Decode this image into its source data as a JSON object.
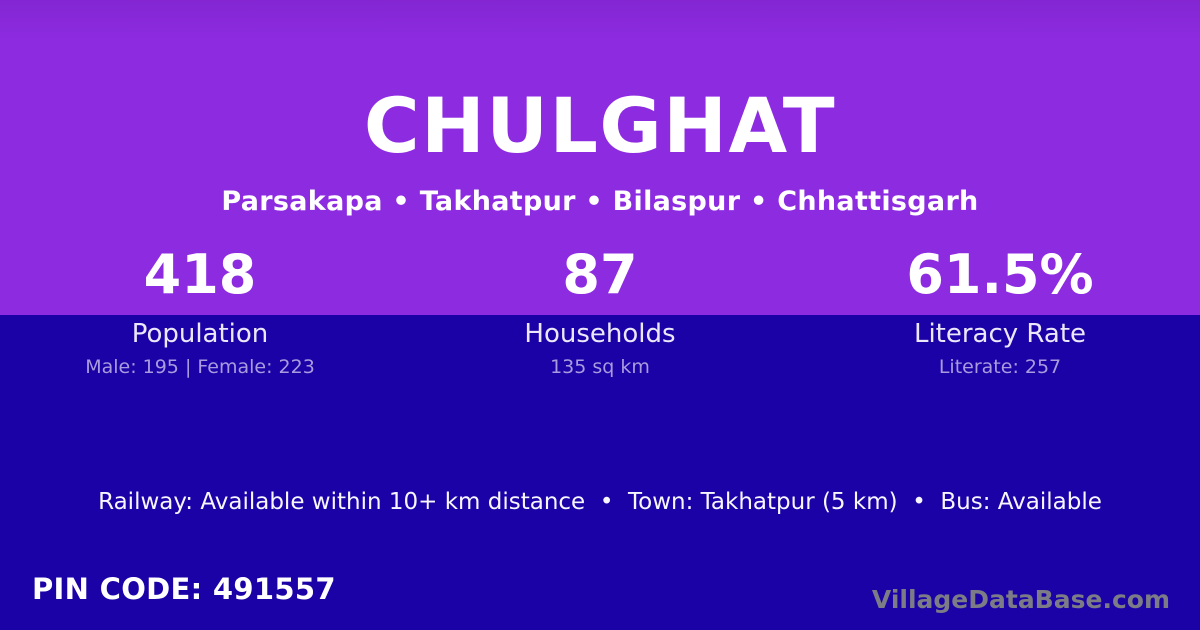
{
  "colors": {
    "top_bg": "#8d2be1",
    "top_bg_edge": "#8326d2",
    "bottom_bg": "#1b02a7",
    "text_primary": "#ffffff",
    "text_label": "#ece7fa",
    "text_muted": "#a99bde",
    "text_info": "#f8f6ff",
    "watermark": "#7c7c86"
  },
  "header": {
    "title": "CHULGHAT",
    "subtitle": "Parsakapa • Takhatpur • Bilaspur • Chhattisgarh"
  },
  "stats": [
    {
      "value": "418",
      "label": "Population",
      "sub": "Male: 195 | Female: 223"
    },
    {
      "value": "87",
      "label": "Households",
      "sub": "135 sq km"
    },
    {
      "value": "61.5%",
      "label": "Literacy Rate",
      "sub": "Literate: 257"
    }
  ],
  "info_line": "Railway: Available within 10+ km distance  •  Town: Takhatpur (5 km)  •  Bus: Available",
  "footer": {
    "pin": "PIN CODE: 491557",
    "watermark": "VillageDataBase.com"
  }
}
